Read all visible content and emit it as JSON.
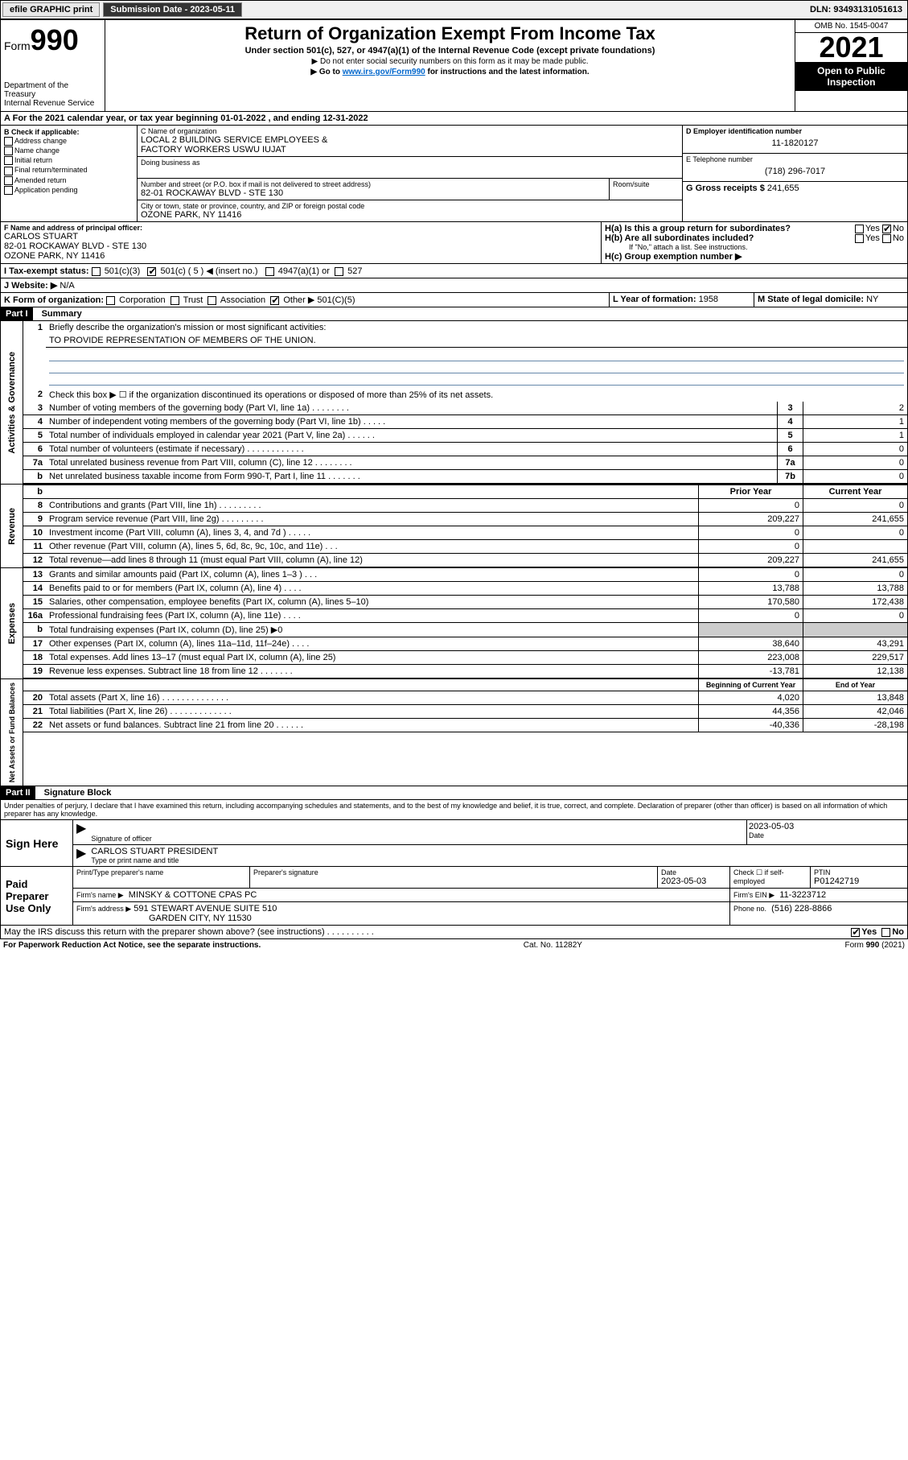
{
  "topbar": {
    "efile": "efile GRAPHIC print",
    "submission_label": "Submission Date - 2023-05-11",
    "dln": "DLN: 93493131051613"
  },
  "header": {
    "form_label": "Form",
    "form_no": "990",
    "dept": "Department of the Treasury",
    "irs": "Internal Revenue Service",
    "title": "Return of Organization Exempt From Income Tax",
    "subtitle": "Under section 501(c), 527, or 4947(a)(1) of the Internal Revenue Code (except private foundations)",
    "note1": "▶ Do not enter social security numbers on this form as it may be made public.",
    "note2_pre": "▶ Go to ",
    "note2_link": "www.irs.gov/Form990",
    "note2_post": " for instructions and the latest information.",
    "omb": "OMB No. 1545-0047",
    "year": "2021",
    "inspect1": "Open to Public",
    "inspect2": "Inspection"
  },
  "A": {
    "text": "For the 2021 calendar year, or tax year beginning 01-01-2022   , and ending 12-31-2022"
  },
  "B": {
    "label": "B Check if applicable:",
    "items": [
      "Address change",
      "Name change",
      "Initial return",
      "Final return/terminated",
      "Amended return",
      "Application pending"
    ]
  },
  "C": {
    "name_label": "C Name of organization",
    "name1": "LOCAL 2 BUILDING SERVICE EMPLOYEES &",
    "name2": "FACTORY WORKERS USWU IUJAT",
    "dba_label": "Doing business as",
    "addr_label": "Number and street (or P.O. box if mail is not delivered to street address)",
    "room_label": "Room/suite",
    "addr": "82-01 ROCKAWAY BLVD - STE 130",
    "city_label": "City or town, state or province, country, and ZIP or foreign postal code",
    "city": "OZONE PARK, NY  11416"
  },
  "D": {
    "label": "D Employer identification number",
    "value": "11-1820127"
  },
  "E": {
    "label": "E Telephone number",
    "value": "(718) 296-7017"
  },
  "G": {
    "label": "G Gross receipts $",
    "value": "241,655"
  },
  "F": {
    "label": "F  Name and address of principal officer:",
    "name": "CARLOS STUART",
    "addr": "82-01 ROCKAWAY BLVD - STE 130",
    "city": "OZONE PARK, NY  11416"
  },
  "H": {
    "a": "H(a)  Is this a group return for subordinates?",
    "b": "H(b)  Are all subordinates included?",
    "bnote": "If \"No,\" attach a list. See instructions.",
    "c": "H(c)  Group exemption number ▶",
    "yes": "Yes",
    "no": "No"
  },
  "I": {
    "label": "I   Tax-exempt status:",
    "opt1": "501(c)(3)",
    "opt2": "501(c) ( 5 ) ◀ (insert no.)",
    "opt3": "4947(a)(1) or",
    "opt4": "527"
  },
  "J": {
    "label": "J   Website: ▶",
    "value": "N/A"
  },
  "K": {
    "label": "K Form of organization:",
    "opts": [
      "Corporation",
      "Trust",
      "Association",
      "Other ▶"
    ],
    "other_val": "501(C)(5)"
  },
  "L": {
    "label": "L Year of formation:",
    "value": "1958"
  },
  "M": {
    "label": "M State of legal domicile:",
    "value": "NY"
  },
  "part1": {
    "header": "Part I",
    "title": "Summary",
    "line1a": "Briefly describe the organization's mission or most significant activities:",
    "line1b": "TO PROVIDE REPRESENTATION OF MEMBERS OF THE UNION.",
    "line2": "Check this box ▶ ☐  if the organization discontinued its operations or disposed of more than 25% of its net assets.",
    "rows_single": [
      {
        "n": "3",
        "t": "Number of voting members of the governing body (Part VI, line 1a)   .   .   .   .   .   .   .   .",
        "box": "3",
        "v": "2"
      },
      {
        "n": "4",
        "t": "Number of independent voting members of the governing body (Part VI, line 1b)   .   .   .   .   .",
        "box": "4",
        "v": "1"
      },
      {
        "n": "5",
        "t": "Total number of individuals employed in calendar year 2021 (Part V, line 2a)   .   .   .   .   .   .",
        "box": "5",
        "v": "1"
      },
      {
        "n": "6",
        "t": "Total number of volunteers (estimate if necessary)   .   .   .   .   .   .   .   .   .   .   .   .",
        "box": "6",
        "v": "0"
      },
      {
        "n": "7a",
        "t": "Total unrelated business revenue from Part VIII, column (C), line 12   .   .   .   .   .   .   .   .",
        "box": "7a",
        "v": "0"
      },
      {
        "n": "b",
        "t": "Net unrelated business taxable income from Form 990-T, Part I, line 11   .   .   .   .   .   .   .",
        "box": "7b",
        "v": "0"
      }
    ],
    "col_prior": "Prior Year",
    "col_current": "Current Year",
    "revenue_rows": [
      {
        "n": "8",
        "t": "Contributions and grants (Part VIII, line 1h)   .   .   .   .   .   .   .   .   .",
        "p": "0",
        "c": "0"
      },
      {
        "n": "9",
        "t": "Program service revenue (Part VIII, line 2g)   .   .   .   .   .   .   .   .   .",
        "p": "209,227",
        "c": "241,655"
      },
      {
        "n": "10",
        "t": "Investment income (Part VIII, column (A), lines 3, 4, and 7d )   .   .   .   .   .",
        "p": "0",
        "c": "0"
      },
      {
        "n": "11",
        "t": "Other revenue (Part VIII, column (A), lines 5, 6d, 8c, 9c, 10c, and 11e)   .   .   .",
        "p": "0",
        "c": ""
      },
      {
        "n": "12",
        "t": "Total revenue—add lines 8 through 11 (must equal Part VIII, column (A), line 12)",
        "p": "209,227",
        "c": "241,655"
      }
    ],
    "expense_rows": [
      {
        "n": "13",
        "t": "Grants and similar amounts paid (Part IX, column (A), lines 1–3 )   .   .   .",
        "p": "0",
        "c": "0"
      },
      {
        "n": "14",
        "t": "Benefits paid to or for members (Part IX, column (A), line 4)   .   .   .   .",
        "p": "13,788",
        "c": "13,788"
      },
      {
        "n": "15",
        "t": "Salaries, other compensation, employee benefits (Part IX, column (A), lines 5–10)",
        "p": "170,580",
        "c": "172,438"
      },
      {
        "n": "16a",
        "t": "Professional fundraising fees (Part IX, column (A), line 11e)   .   .   .   .",
        "p": "0",
        "c": "0"
      },
      {
        "n": "b",
        "t": "Total fundraising expenses (Part IX, column (D), line 25) ▶0",
        "p": "shade",
        "c": "shade"
      },
      {
        "n": "17",
        "t": "Other expenses (Part IX, column (A), lines 11a–11d, 11f–24e)   .   .   .   .",
        "p": "38,640",
        "c": "43,291"
      },
      {
        "n": "18",
        "t": "Total expenses. Add lines 13–17 (must equal Part IX, column (A), line 25)",
        "p": "223,008",
        "c": "229,517"
      },
      {
        "n": "19",
        "t": "Revenue less expenses. Subtract line 18 from line 12   .   .   .   .   .   .   .",
        "p": "-13,781",
        "c": "12,138"
      }
    ],
    "col_begin": "Beginning of Current Year",
    "col_end": "End of Year",
    "net_rows": [
      {
        "n": "20",
        "t": "Total assets (Part X, line 16)   .   .   .   .   .   .   .   .   .   .   .   .   .   .",
        "p": "4,020",
        "c": "13,848"
      },
      {
        "n": "21",
        "t": "Total liabilities (Part X, line 26)   .   .   .   .   .   .   .   .   .   .   .   .   .",
        "p": "44,356",
        "c": "42,046"
      },
      {
        "n": "22",
        "t": "Net assets or fund balances. Subtract line 21 from line 20   .   .   .   .   .   .",
        "p": "-40,336",
        "c": "-28,198"
      }
    ],
    "side_activities": "Activities & Governance",
    "side_revenue": "Revenue",
    "side_expenses": "Expenses",
    "side_net": "Net Assets or Fund Balances"
  },
  "part2": {
    "header": "Part II",
    "title": "Signature Block",
    "decl": "Under penalties of perjury, I declare that I have examined this return, including accompanying schedules and statements, and to the best of my knowledge and belief, it is true, correct, and complete. Declaration of preparer (other than officer) is based on all information of which preparer has any knowledge.",
    "sign_here": "Sign Here",
    "sig_officer": "Signature of officer",
    "date": "Date",
    "sig_date": "2023-05-03",
    "officer_name": "CARLOS STUART PRESIDENT",
    "type_name": "Type or print name and title",
    "paid_prep": "Paid Preparer Use Only",
    "prep_name_label": "Print/Type preparer's name",
    "prep_sig_label": "Preparer's signature",
    "prep_date_label": "Date",
    "prep_date": "2023-05-03",
    "check_if": "Check ☐ if self-employed",
    "ptin_label": "PTIN",
    "ptin": "P01242719",
    "firm_name_label": "Firm's name    ▶",
    "firm_name": "MINSKY & COTTONE CPAS PC",
    "firm_ein_label": "Firm's EIN ▶",
    "firm_ein": "11-3223712",
    "firm_addr_label": "Firm's address ▶",
    "firm_addr1": "591 STEWART AVENUE SUITE 510",
    "firm_addr2": "GARDEN CITY, NY  11530",
    "phone_label": "Phone no.",
    "phone": "(516) 228-8866",
    "discuss": "May the IRS discuss this return with the preparer shown above? (see instructions)   .   .   .   .   .   .   .   .   .   .",
    "yes": "Yes",
    "no": "No"
  },
  "footer": {
    "left": "For Paperwork Reduction Act Notice, see the separate instructions.",
    "mid": "Cat. No. 11282Y",
    "right": "Form 990 (2021)"
  }
}
